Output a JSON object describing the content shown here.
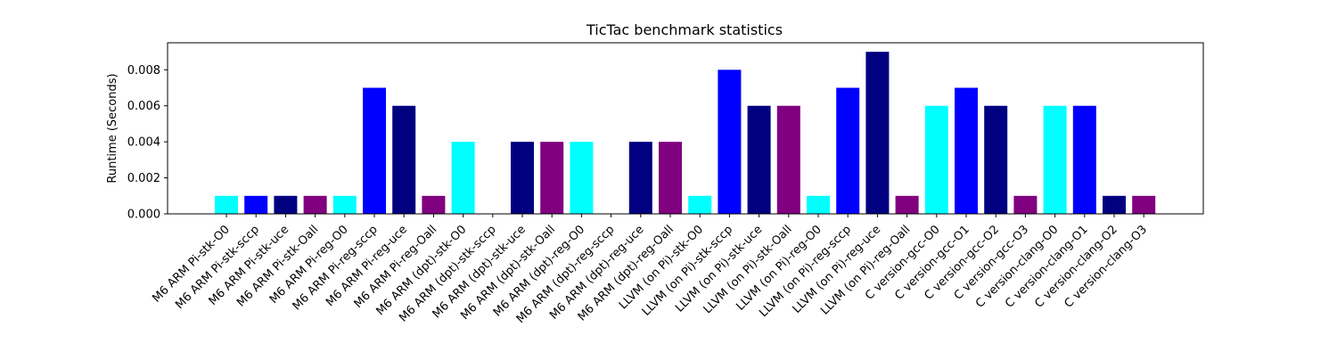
{
  "chart_data": {
    "type": "bar",
    "title": "TicTac benchmark statistics",
    "xlabel": "",
    "ylabel": "Runtime (Seconds)",
    "ylim": [
      0,
      0.0095
    ],
    "yticks": [
      "0.000",
      "0.002",
      "0.004",
      "0.006",
      "0.008"
    ],
    "grid": false,
    "legend": "none",
    "categories": [
      "M6 ARM Pi-stk-O0",
      "M6 ARM Pi-stk-sccp",
      "M6 ARM Pi-stk-uce",
      "M6 ARM Pi-stk-Oall",
      "M6 ARM Pi-reg-O0",
      "M6 ARM Pi-reg-sccp",
      "M6 ARM Pi-reg-uce",
      "M6 ARM Pi-reg-Oall",
      "M6 ARM (dpt)-stk-O0",
      "M6 ARM (dpt)-stk-sccp",
      "M6 ARM (dpt)-stk-uce",
      "M6 ARM (dpt)-stk-Oall",
      "M6 ARM (dpt)-reg-O0",
      "M6 ARM (dpt)-reg-sccp",
      "M6 ARM (dpt)-reg-uce",
      "M6 ARM (dpt)-reg-Oall",
      "LLVM (on Pi)-stk-O0",
      "LLVM (on Pi)-stk-sccp",
      "LLVM (on Pi)-stk-uce",
      "LLVM (on Pi)-stk-Oall",
      "LLVM (on Pi)-reg-O0",
      "LLVM (on Pi)-reg-sccp",
      "LLVM (on Pi)-reg-uce",
      "LLVM (on Pi)-reg-Oall",
      "C version-gcc-O0",
      "C version-gcc-O1",
      "C version-gcc-O2",
      "C version-gcc-O3",
      "C version-clang-O0",
      "C version-clang-O1",
      "C version-clang-O2",
      "C version-clang-O3"
    ],
    "values": [
      0.001,
      0.001,
      0.001,
      0.001,
      0.001,
      0.007,
      0.006,
      0.001,
      0.004,
      0.0,
      0.004,
      0.004,
      0.004,
      0.0,
      0.004,
      0.004,
      0.001,
      0.008,
      0.006,
      0.006,
      0.001,
      0.007,
      0.009,
      0.001,
      0.006,
      0.007,
      0.006,
      0.001,
      0.006,
      0.006,
      0.001,
      0.001
    ],
    "bar_colors": [
      "#00ffff",
      "#0000ff",
      "#000080",
      "#800080"
    ]
  }
}
